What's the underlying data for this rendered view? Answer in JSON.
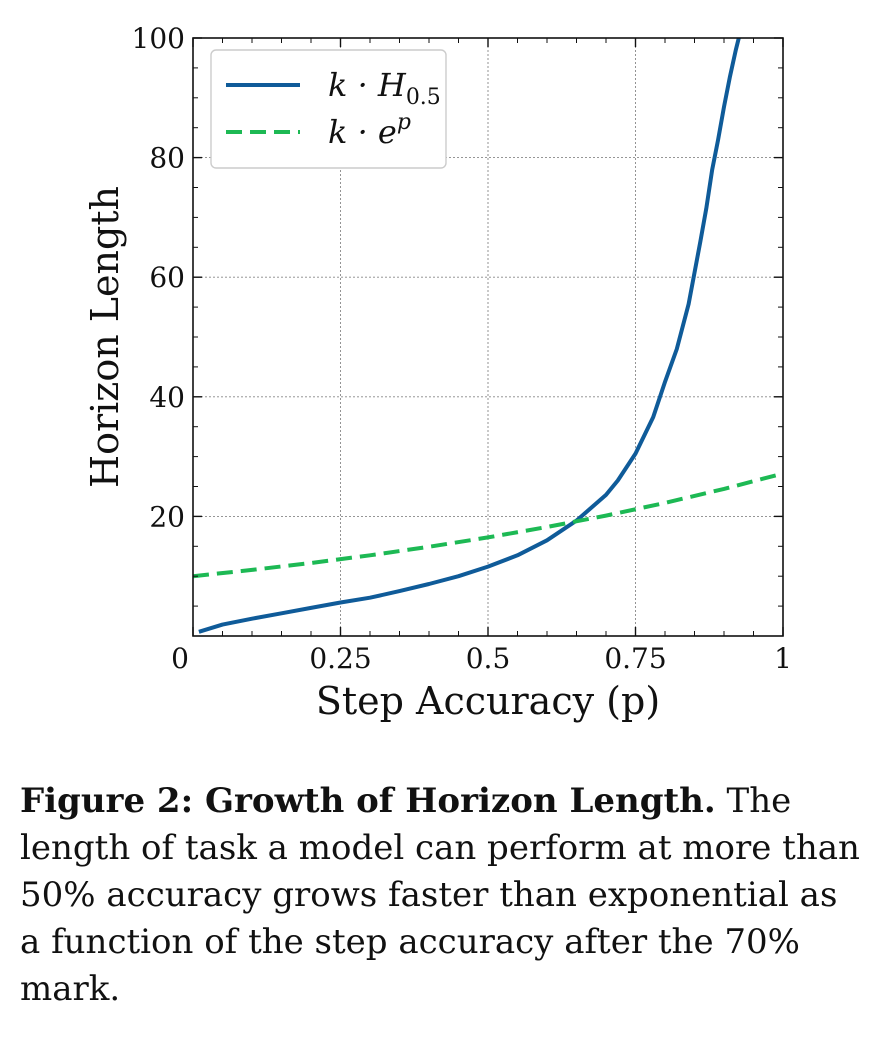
{
  "chart_data": {
    "type": "line",
    "title": "",
    "xlabel": "Step Accuracy (p)",
    "ylabel": "Horizon Length",
    "xlim": [
      0,
      1
    ],
    "ylim": [
      0,
      100
    ],
    "xticks": [
      0,
      0.25,
      0.5,
      0.75,
      1
    ],
    "xtick_labels": [
      "0",
      "0.25",
      "0.5",
      "0.75",
      "1"
    ],
    "yticks": [
      20,
      40,
      60,
      80,
      100
    ],
    "ytick_labels": [
      "20",
      "40",
      "60",
      "80",
      "100"
    ],
    "grid": true,
    "legend_position": "top-left",
    "series": [
      {
        "name": "k · H0.5",
        "legend_main": "k · H",
        "legend_sub": "0.5",
        "legend_sup": "",
        "style": "solid",
        "color": "#0f5b99",
        "x": [
          0.01,
          0.05,
          0.1,
          0.15,
          0.2,
          0.25,
          0.3,
          0.35,
          0.4,
          0.45,
          0.5,
          0.55,
          0.6,
          0.65,
          0.7,
          0.72,
          0.75,
          0.78,
          0.8,
          0.82,
          0.84,
          0.86,
          0.87,
          0.88,
          0.89,
          0.9,
          0.91,
          0.92,
          0.925
        ],
        "y": [
          0.7,
          1.9,
          2.9,
          3.8,
          4.7,
          5.6,
          6.4,
          7.5,
          8.7,
          10.0,
          11.6,
          13.5,
          16.0,
          19.3,
          23.6,
          26.0,
          30.5,
          36.6,
          42.5,
          48.0,
          55.5,
          66.0,
          71.5,
          78.0,
          83.0,
          88.5,
          93.5,
          98.0,
          100.0
        ]
      },
      {
        "name": "k · e^p",
        "legend_main": "k · e",
        "legend_sub": "",
        "legend_sup": "p",
        "style": "dashed",
        "color": "#1db954",
        "x": [
          0,
          0.1,
          0.2,
          0.3,
          0.4,
          0.5,
          0.6,
          0.7,
          0.8,
          0.9,
          1.0
        ],
        "y": [
          10.0,
          11.05,
          12.21,
          13.5,
          14.92,
          16.49,
          18.22,
          20.14,
          22.26,
          24.6,
          27.18
        ]
      }
    ]
  },
  "caption": {
    "label": "Figure 2: Growth of Horizon Length.",
    "text": " The length of task a model can perform at more than 50% accuracy grows faster than exponential as a function of the step accuracy after the 70% mark."
  }
}
